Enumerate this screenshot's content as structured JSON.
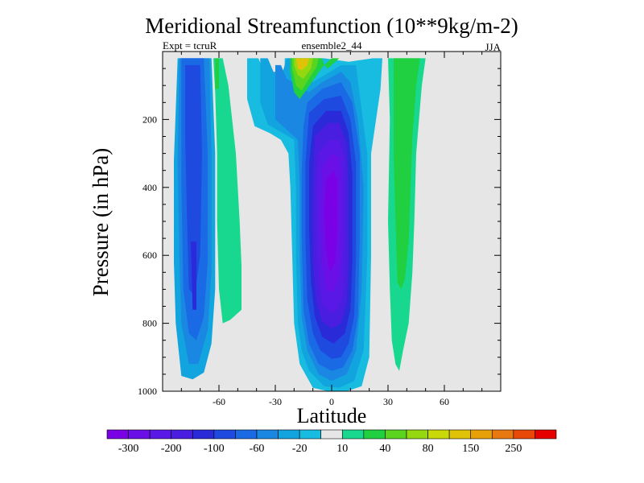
{
  "chart_data": {
    "type": "heatmap",
    "title": "Meridional Streamfunction (10**9kg/m-2)",
    "subtitle_left": "Expt = tcruR",
    "subtitle_center": "ensemble2_44",
    "subtitle_right": "JJA",
    "xlabel": "Latitude",
    "ylabel": "Pressure (in hPa)",
    "xlim": [
      -90,
      90
    ],
    "ylim": [
      1000,
      0
    ],
    "y_axis_inverted": true,
    "x_ticks": [
      -60,
      -30,
      0,
      30,
      60
    ],
    "y_ticks": [
      200,
      400,
      600,
      800,
      1000
    ],
    "missing_value_color": "#e6e6e6",
    "contour_levels": [
      -300,
      -250,
      -200,
      -150,
      -100,
      -80,
      -60,
      -40,
      -20,
      -10,
      10,
      20,
      40,
      60,
      80,
      100,
      150,
      200,
      250,
      300
    ],
    "colorbar": {
      "colors": [
        "#7a00e6",
        "#6a10e6",
        "#5a18e6",
        "#4a1ee0",
        "#2a2ad8",
        "#1f4ae0",
        "#1a6ae6",
        "#1a88e2",
        "#12a4de",
        "#18bce0",
        "#e6e6e6",
        "#18d890",
        "#20d040",
        "#5ad41e",
        "#96d810",
        "#c8d808",
        "#e0c208",
        "#e8a008",
        "#e87810",
        "#e84808",
        "#e60000"
      ],
      "tick_labels": [
        "-300",
        "-200",
        "-100",
        "-60",
        "-20",
        "10",
        "40",
        "80",
        "150",
        "250"
      ]
    },
    "features": [
      {
        "name": "southern-negative-cell",
        "lat_range": [
          -82,
          -64
        ],
        "pressure_range": [
          20,
          970
        ],
        "min_value": -150,
        "approx_center": [
          -72,
          650
        ]
      },
      {
        "name": "southern-positive-cell",
        "lat_range": [
          -63,
          -48
        ],
        "pressure_range": [
          20,
          790
        ],
        "max_value": 20,
        "approx_center": [
          -55,
          650
        ]
      },
      {
        "name": "hadley-negative-cell",
        "lat_range": [
          -18,
          23
        ],
        "pressure_range": [
          120,
          1000
        ],
        "min_value": -300,
        "approx_center": [
          2,
          480
        ]
      },
      {
        "name": "stratospheric-positive-lobe",
        "lat_range": [
          -22,
          -5
        ],
        "pressure_range": [
          20,
          140
        ],
        "max_value": 150,
        "approx_center": [
          -15,
          60
        ]
      },
      {
        "name": "northern-positive-cell",
        "lat_range": [
          30,
          50
        ],
        "pressure_range": [
          20,
          940
        ],
        "max_value": 20,
        "approx_center": [
          38,
          500
        ]
      }
    ]
  }
}
